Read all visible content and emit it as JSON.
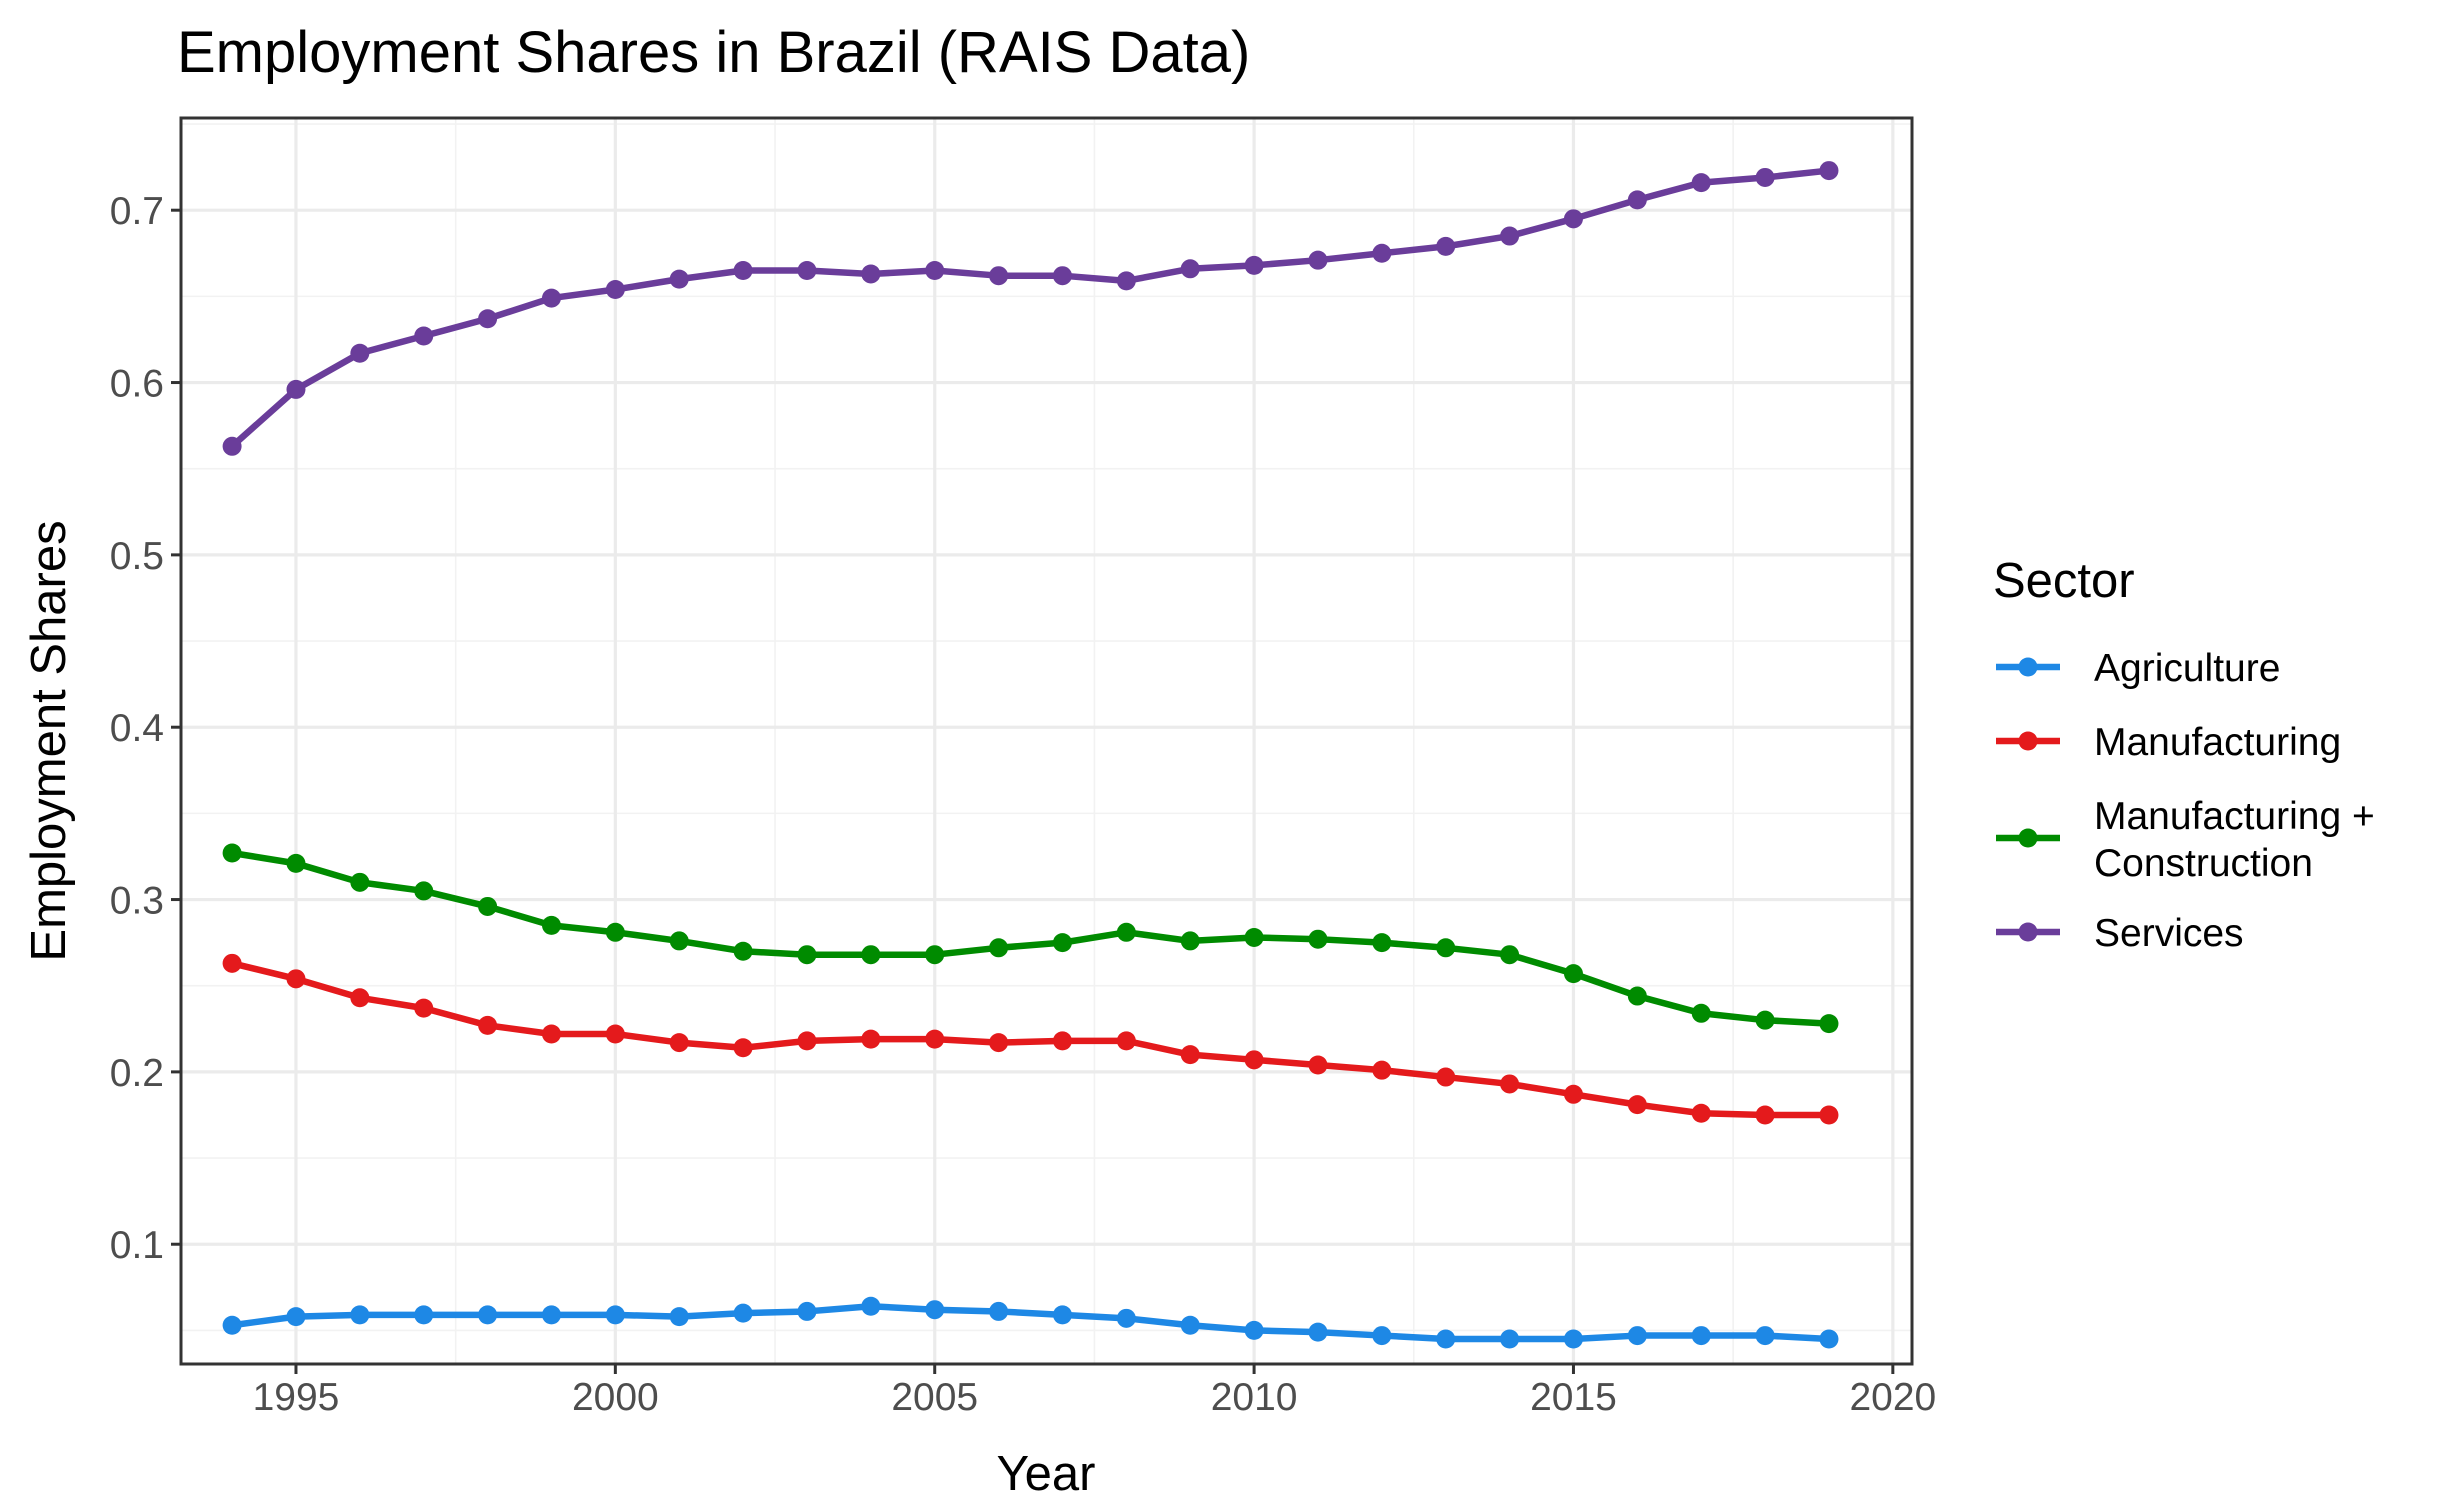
{
  "chart_data": {
    "type": "line",
    "title": "Employment Shares in Brazil (RAIS Data)",
    "xlabel": "Year",
    "ylabel": "Employment Shares",
    "xlim": [
      1993.2,
      2020.3
    ],
    "ylim": [
      0.0305,
      0.7535
    ],
    "x_ticks": [
      1995,
      2000,
      2005,
      2010,
      2015,
      2020
    ],
    "x_tick_labels": [
      "1995",
      "2000",
      "2005",
      "2010",
      "2015",
      "2020"
    ],
    "y_ticks": [
      0.1,
      0.2,
      0.3,
      0.4,
      0.5,
      0.6,
      0.7
    ],
    "y_tick_labels": [
      "0.1",
      "0.2",
      "0.3",
      "0.4",
      "0.5",
      "0.6",
      "0.7"
    ],
    "grid": true,
    "legend_title": "Sector",
    "legend_position": "right",
    "x": [
      1994,
      1995,
      1996,
      1997,
      1998,
      1999,
      2000,
      2001,
      2002,
      2003,
      2004,
      2005,
      2006,
      2007,
      2008,
      2009,
      2010,
      2011,
      2012,
      2013,
      2014,
      2015,
      2016,
      2017,
      2018,
      2019
    ],
    "series": [
      {
        "name": "Agriculture",
        "legend_lines": [
          "Agriculture"
        ],
        "color": "#1e88e5",
        "values": [
          0.053,
          0.058,
          0.059,
          0.059,
          0.059,
          0.059,
          0.059,
          0.058,
          0.06,
          0.061,
          0.064,
          0.062,
          0.061,
          0.059,
          0.057,
          0.053,
          0.05,
          0.049,
          0.047,
          0.045,
          0.045,
          0.045,
          0.047,
          0.047,
          0.047,
          0.045
        ]
      },
      {
        "name": "Manufacturing",
        "legend_lines": [
          "Manufacturing"
        ],
        "color": "#e41a1c",
        "values": [
          0.263,
          0.254,
          0.243,
          0.237,
          0.227,
          0.222,
          0.222,
          0.217,
          0.214,
          0.218,
          0.219,
          0.219,
          0.217,
          0.218,
          0.218,
          0.21,
          0.207,
          0.204,
          0.201,
          0.197,
          0.193,
          0.187,
          0.181,
          0.176,
          0.175,
          0.175
        ]
      },
      {
        "name": "Manufacturing + Construction",
        "legend_lines": [
          "Manufacturing +",
          "Construction"
        ],
        "color": "#008b00",
        "values": [
          0.327,
          0.321,
          0.31,
          0.305,
          0.296,
          0.285,
          0.281,
          0.276,
          0.27,
          0.268,
          0.268,
          0.268,
          0.272,
          0.275,
          0.281,
          0.276,
          0.278,
          0.277,
          0.275,
          0.272,
          0.268,
          0.257,
          0.244,
          0.234,
          0.23,
          0.228
        ]
      },
      {
        "name": "Services",
        "legend_lines": [
          "Services"
        ],
        "color": "#6a3d9a",
        "values": [
          0.563,
          0.596,
          0.617,
          0.627,
          0.637,
          0.649,
          0.654,
          0.66,
          0.665,
          0.665,
          0.663,
          0.665,
          0.662,
          0.662,
          0.659,
          0.666,
          0.668,
          0.671,
          0.675,
          0.679,
          0.685,
          0.695,
          0.706,
          0.716,
          0.719,
          0.723
        ]
      }
    ]
  }
}
